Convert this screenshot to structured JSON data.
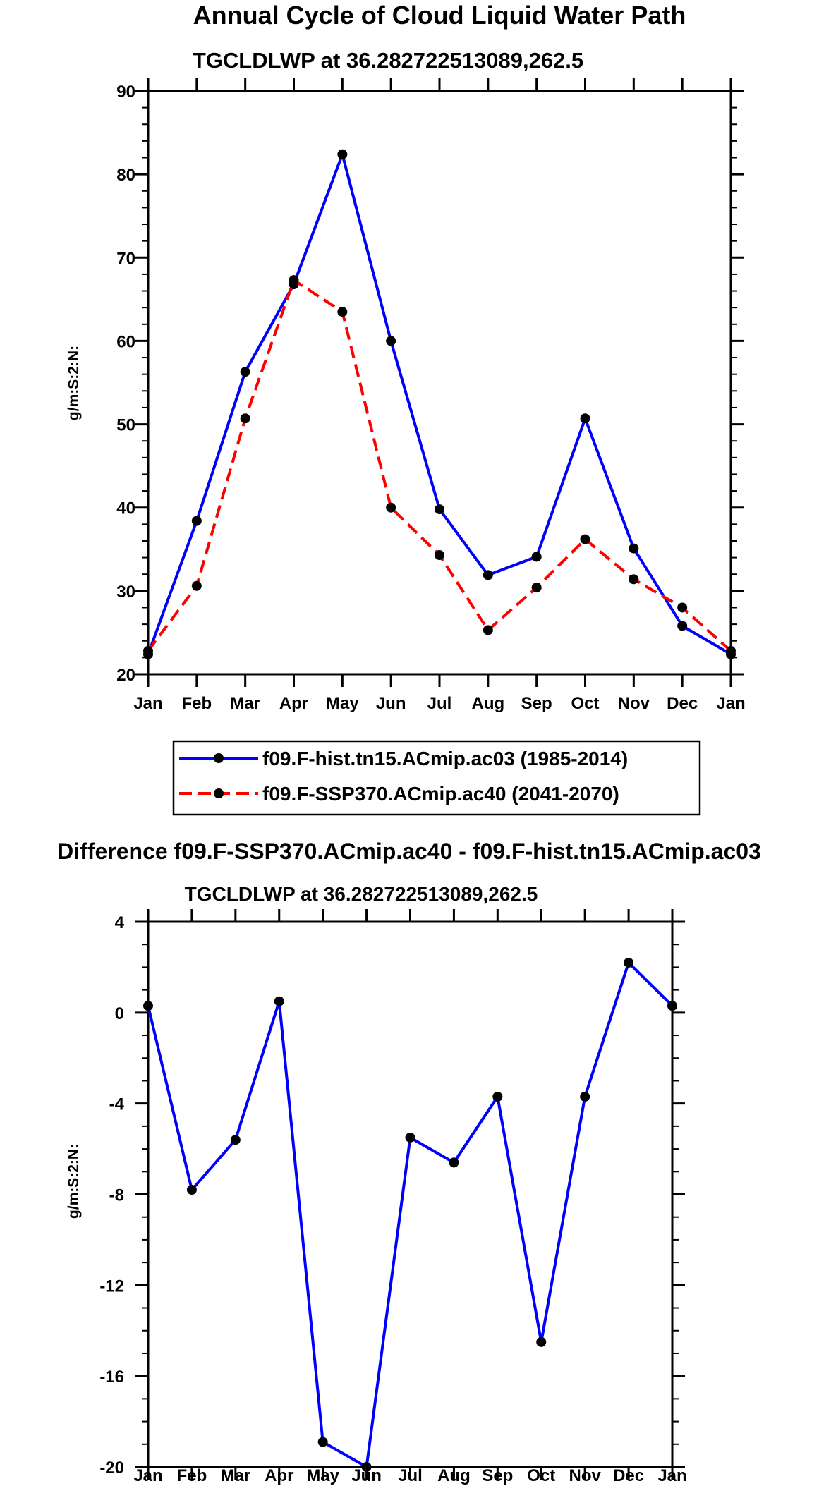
{
  "chart_data": [
    {
      "type": "line",
      "title": "Annual Cycle of Cloud Liquid Water Path",
      "subtitle": "TGCLDLWP at 36.282722513089,262.5",
      "xlabel": "",
      "ylabel": "g/m:S:2:N:",
      "categories": [
        "Jan",
        "Feb",
        "Mar",
        "Apr",
        "May",
        "Jun",
        "Jul",
        "Aug",
        "Sep",
        "Oct",
        "Nov",
        "Dec",
        "Jan"
      ],
      "ylim": [
        20,
        90
      ],
      "yticks": [
        20,
        30,
        40,
        50,
        60,
        70,
        80,
        90
      ],
      "legend_position": "bottom",
      "series": [
        {
          "name": "f09.F-hist.tn15.ACmip.ac03 (1985-2014)",
          "color": "#0000ff",
          "dash": "solid",
          "values": [
            22.4,
            38.4,
            56.3,
            66.8,
            82.4,
            60.0,
            39.8,
            31.9,
            34.1,
            50.7,
            35.1,
            25.8,
            22.4
          ]
        },
        {
          "name": "f09.F-SSP370.ACmip.ac40 (2041-2070)",
          "color": "#ff0000",
          "dash": "dashed",
          "values": [
            22.8,
            30.6,
            50.7,
            67.3,
            63.5,
            40.0,
            34.3,
            25.3,
            30.4,
            36.2,
            31.4,
            28.0,
            22.8
          ]
        }
      ]
    },
    {
      "type": "line",
      "title": "Difference f09.F-SSP370.ACmip.ac40 - f09.F-hist.tn15.ACmip.ac03",
      "subtitle": "TGCLDLWP at 36.282722513089,262.5",
      "xlabel": "",
      "ylabel": "g/m:S:2:N:",
      "categories": [
        "Jan",
        "Feb",
        "Mar",
        "Apr",
        "May",
        "Jun",
        "Jul",
        "Aug",
        "Sep",
        "Oct",
        "Nov",
        "Dec",
        "Jan"
      ],
      "ylim": [
        -20,
        4
      ],
      "yticks": [
        -20,
        -16,
        -12,
        -8,
        -4,
        0,
        4
      ],
      "series": [
        {
          "name": "Difference",
          "color": "#0000ff",
          "dash": "solid",
          "values": [
            0.3,
            -7.8,
            -5.6,
            0.5,
            -18.9,
            -20.0,
            -5.5,
            -6.6,
            -3.7,
            -14.5,
            -3.7,
            2.2,
            0.3
          ]
        }
      ]
    }
  ]
}
